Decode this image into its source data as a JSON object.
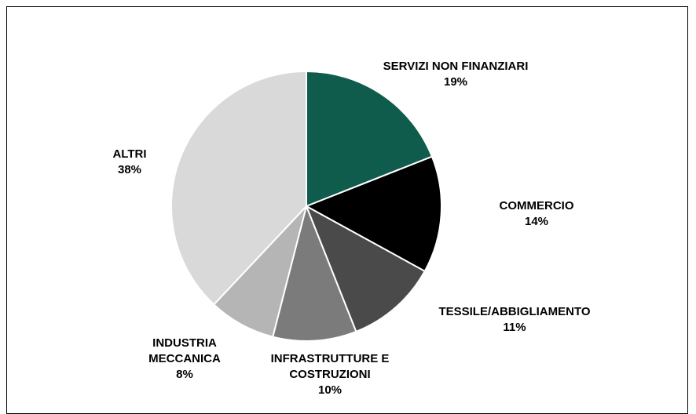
{
  "chart_data": {
    "type": "pie",
    "categories": [
      "SERVIZI NON FINANZIARI",
      "COMMERCIO",
      "TESSILE/ABBIGLIAMENTO",
      "INFRASTRUTTURE E COSTRUZIONI",
      "INDUSTRIA MECCANICA",
      "ALTRI"
    ],
    "values": [
      19,
      14,
      11,
      10,
      8,
      38
    ],
    "value_labels": [
      "19%",
      "14%",
      "11%",
      "10%",
      "8%",
      "38%"
    ],
    "colors": [
      "#0f5c4c",
      "#000000",
      "#4a4a4a",
      "#7b7b7b",
      "#b5b5b5",
      "#d9d9d9"
    ]
  }
}
